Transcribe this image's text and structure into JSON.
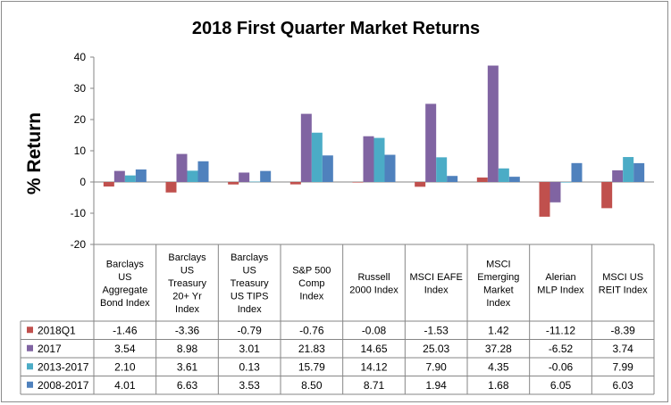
{
  "chart_data": {
    "type": "bar",
    "title": "2018 First Quarter Market Returns",
    "ylabel": "% Return",
    "xlabel": "",
    "ylim": [
      -20,
      40
    ],
    "yticks": [
      -20,
      -10,
      0,
      10,
      20,
      30,
      40
    ],
    "grid": false,
    "legend": "data-table",
    "categories": [
      [
        "Barclays",
        "US",
        "Aggregate",
        "Bond Index"
      ],
      [
        "Barclays",
        "US",
        "Treasury",
        "20+ Yr",
        "Index"
      ],
      [
        "Barclays",
        "US",
        "Treasury",
        "US TIPS",
        "Index"
      ],
      [
        "S&P 500",
        "Comp",
        "Index"
      ],
      [
        "Russell",
        "2000 Index"
      ],
      [
        "MSCI EAFE",
        "Index"
      ],
      [
        "MSCI",
        "Emerging",
        "Market",
        "Index"
      ],
      [
        "Alerian",
        "MLP Index"
      ],
      [
        "MSCI US",
        "REIT Index"
      ]
    ],
    "series": [
      {
        "name": "2018Q1",
        "color": "#C0504D",
        "values": [
          -1.46,
          -3.36,
          -0.79,
          -0.76,
          -0.08,
          -1.53,
          1.42,
          -11.12,
          -8.39
        ],
        "labels": [
          "-1.46",
          "-3.36",
          "-0.79",
          "-0.76",
          "-0.08",
          "-1.53",
          "1.42",
          "-11.12",
          "-8.39"
        ]
      },
      {
        "name": "2017",
        "color": "#8064A2",
        "values": [
          3.54,
          8.98,
          3.01,
          21.83,
          14.65,
          25.03,
          37.28,
          -6.52,
          3.74
        ],
        "labels": [
          "3.54",
          "8.98",
          "3.01",
          "21.83",
          "14.65",
          "25.03",
          "37.28",
          "-6.52",
          "3.74"
        ]
      },
      {
        "name": "2013-2017",
        "color": "#4BACC6",
        "values": [
          2.1,
          3.61,
          0.13,
          15.79,
          14.12,
          7.9,
          4.35,
          -0.06,
          7.99
        ],
        "labels": [
          "2.10",
          "3.61",
          "0.13",
          "15.79",
          "14.12",
          "7.90",
          "4.35",
          "-0.06",
          "7.99"
        ]
      },
      {
        "name": "2008-2017",
        "color": "#4F81BD",
        "values": [
          4.01,
          6.63,
          3.53,
          8.5,
          8.71,
          1.94,
          1.68,
          6.05,
          6.03
        ],
        "labels": [
          "4.01",
          "6.63",
          "3.53",
          "8.50",
          "8.71",
          "1.94",
          "1.68",
          "6.05",
          "6.03"
        ]
      }
    ]
  }
}
